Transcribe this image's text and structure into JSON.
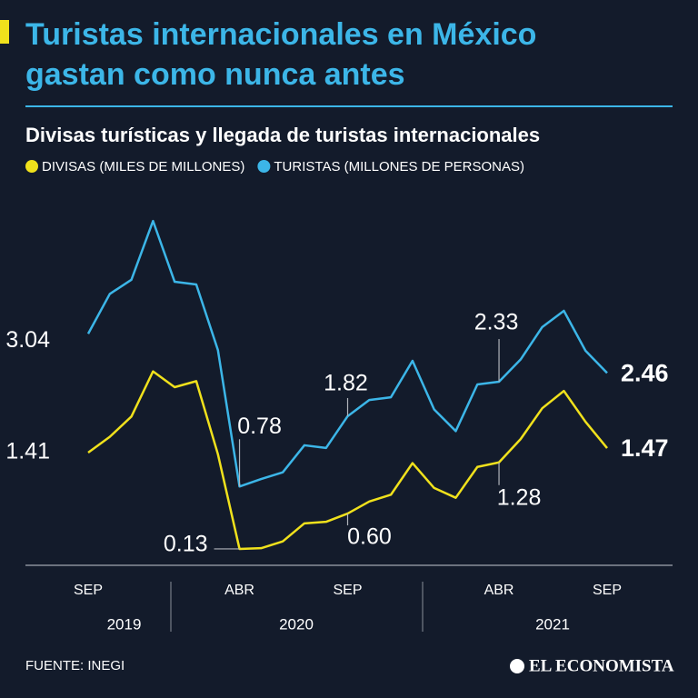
{
  "chart_data": {
    "type": "line",
    "title": [
      "Turistas internacionales en México",
      "gastan como nunca antes"
    ],
    "subtitle": "Divisas turísticas y llegada de turistas internacionales",
    "categories": [
      "SEP",
      null,
      null,
      null,
      null,
      null,
      null,
      "ABR",
      null,
      null,
      null,
      null,
      "SEP",
      null,
      null,
      null,
      null,
      null,
      null,
      "ABR",
      null,
      null,
      null,
      null,
      "SEP"
    ],
    "year_labels": [
      "2019",
      "2020",
      "2021"
    ],
    "ylim": [
      -0.4,
      4.9
    ],
    "y2lim": [
      -0.1,
      4.66
    ],
    "series": [
      {
        "name": "TURISTAS (MILLONES DE PERSONAS)",
        "color": "#3cb6e8",
        "values": [
          3.04,
          3.63,
          3.84,
          4.71,
          3.81,
          3.77,
          2.8,
          0.78,
          0.89,
          0.99,
          1.39,
          1.35,
          1.82,
          2.06,
          2.1,
          2.64,
          1.92,
          1.6,
          2.29,
          2.33,
          2.66,
          3.14,
          3.38,
          2.79,
          2.46
        ],
        "value_labels": [
          "3.04",
          null,
          null,
          null,
          null,
          null,
          null,
          "0.78",
          null,
          null,
          null,
          null,
          "1.82",
          null,
          null,
          null,
          null,
          null,
          null,
          "2.33",
          null,
          null,
          null,
          null,
          "2.46"
        ]
      },
      {
        "name": "DIVISAS (MILES DE MILLONES)",
        "color": "#f0e11c",
        "axis": "y2",
        "values": [
          1.41,
          1.62,
          1.89,
          2.49,
          2.28,
          2.36,
          1.39,
          0.13,
          0.14,
          0.23,
          0.47,
          0.49,
          0.6,
          0.76,
          0.85,
          1.27,
          0.94,
          0.81,
          1.22,
          1.28,
          1.59,
          2.0,
          2.23,
          1.82,
          1.47
        ],
        "value_labels": [
          "1.41",
          null,
          null,
          null,
          null,
          null,
          null,
          "0.13",
          null,
          null,
          null,
          null,
          "0.60",
          null,
          null,
          null,
          null,
          null,
          null,
          "1.28",
          null,
          null,
          null,
          null,
          "1.47"
        ]
      }
    ],
    "legend_order": [
      1,
      0
    ],
    "source": "FUENTE: INEGI",
    "logo": "EL ECONOMISTA"
  }
}
